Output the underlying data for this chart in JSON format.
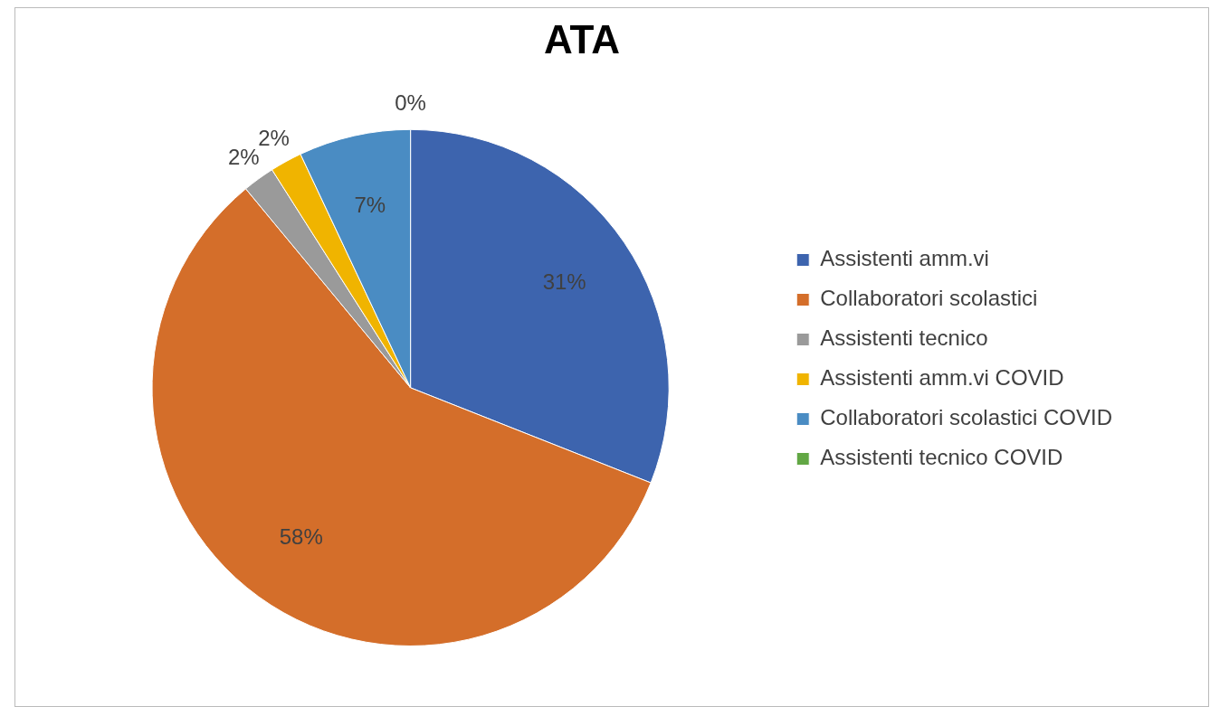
{
  "chart_data": {
    "type": "pie",
    "title": "ATA",
    "categories": [
      "Assistenti amm.vi",
      "Collaboratori scolastici",
      "Assistenti tecnico",
      "Assistenti amm.vi COVID",
      "Collaboratori scolastici COVID",
      "Assistenti tecnico COVID"
    ],
    "values": [
      31,
      58,
      2,
      2,
      7,
      0
    ],
    "colors": [
      "#3d64ae",
      "#d46e2a",
      "#9a9a9a",
      "#f0b400",
      "#4a8cc3",
      "#62a744"
    ],
    "value_labels": [
      "31%",
      "58%",
      "2%",
      "2%",
      "7%",
      "0%"
    ],
    "legend": "right"
  }
}
